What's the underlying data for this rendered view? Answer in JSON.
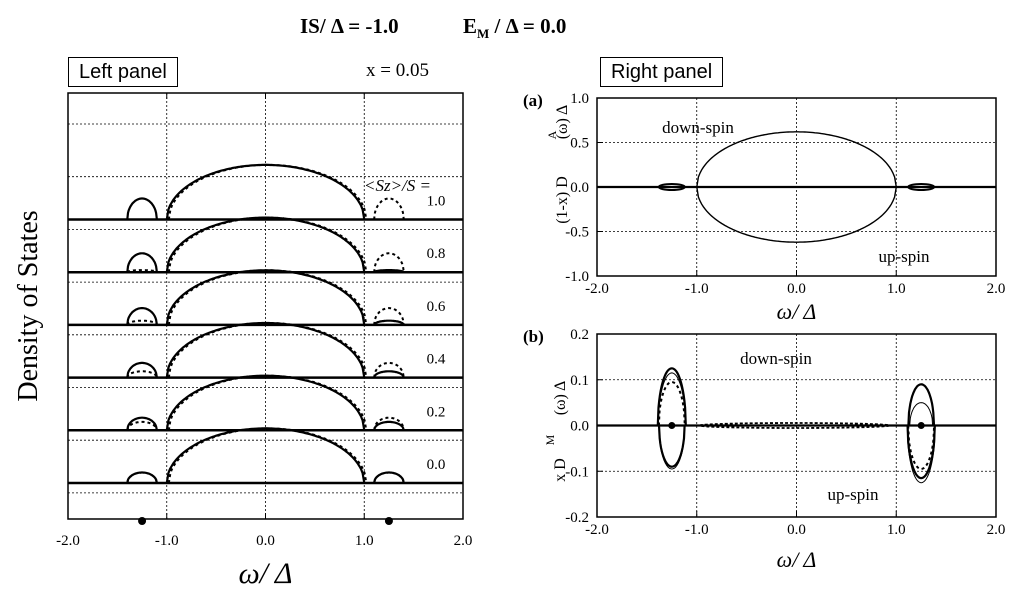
{
  "header": {
    "is_label": "IS/ Δ = -1.0",
    "em_main": "E",
    "em_sub": "M",
    "em_rest": " / Δ = 0.0"
  },
  "left_panel": {
    "box_label": "Left panel",
    "x_label": "x = 0.05",
    "ylabel": "Density of  States",
    "xlabel": "ω/ Δ",
    "sz_label": "<Sz>/S =",
    "curve_labels": [
      "1.0",
      "0.8",
      "0.6",
      "0.4",
      "0.2",
      "0.0"
    ]
  },
  "right_panel": {
    "box_label": "Right panel"
  },
  "chart_data": [
    {
      "id": "left",
      "type": "line",
      "title": "Left panel",
      "xlabel": "ω/ Δ",
      "ylabel": "Density of  States",
      "xlim": [
        -2.0,
        2.0
      ],
      "xticks": [
        -2.0,
        -1.0,
        0.0,
        1.0,
        2.0
      ],
      "xtick_labels": [
        "-2.0",
        "-1.0",
        "0.0",
        "1.0",
        "2.0"
      ],
      "offsets": [
        6,
        5,
        4,
        3,
        2,
        1
      ],
      "sz_values": [
        "1.0",
        "0.8",
        "0.6",
        "0.4",
        "0.2",
        "0.0"
      ],
      "main_peak_height": 2.6,
      "bound_state_center": 1.25,
      "bound_state_halfwidth": 0.15,
      "solid_left_heights": [
        1.0,
        0.9,
        0.8,
        0.7,
        0.6,
        0.5
      ],
      "dashed_left_heights": [
        0.0,
        0.1,
        0.2,
        0.3,
        0.4,
        0.5
      ],
      "solid_right_heights": [
        0.0,
        0.1,
        0.2,
        0.3,
        0.4,
        0.5
      ],
      "dashed_right_heights": [
        1.0,
        0.9,
        0.8,
        0.7,
        0.6,
        0.5
      ],
      "marker_points": [
        -1.25,
        1.25
      ],
      "grid": true
    },
    {
      "id": "a",
      "type": "line",
      "label": "(a)",
      "xlabel": "ω/ Δ",
      "ylabel": "(1-x) D^A(ω) Δ",
      "xlim": [
        -2.0,
        2.0
      ],
      "ylim": [
        -1.0,
        1.0
      ],
      "xticks": [
        -2.0,
        -1.0,
        0.0,
        1.0,
        2.0
      ],
      "xtick_labels": [
        "-2.0",
        "-1.0",
        "0.0",
        "1.0",
        "2.0"
      ],
      "yticks": [
        -1.0,
        -0.5,
        0.0,
        0.5,
        1.0
      ],
      "ytick_labels": [
        "-1.0",
        "-0.5",
        "0.0",
        "0.5",
        "1.0"
      ],
      "series": [
        {
          "name": "down-spin",
          "peak": 0.62
        },
        {
          "name": "up-spin",
          "peak": -0.62
        }
      ],
      "annotations": [
        "down-spin",
        "up-spin"
      ],
      "grid": true
    },
    {
      "id": "b",
      "type": "line",
      "label": "(b)",
      "xlabel": "ω/ Δ",
      "ylabel": "x D^M(ω) Δ",
      "xlim": [
        -2.0,
        2.0
      ],
      "ylim": [
        -0.2,
        0.2
      ],
      "xticks": [
        -2.0,
        -1.0,
        0.0,
        1.0,
        2.0
      ],
      "xtick_labels": [
        "-2.0",
        "-1.0",
        "0.0",
        "1.0",
        "2.0"
      ],
      "yticks": [
        -0.2,
        -0.1,
        0.0,
        0.1,
        0.2
      ],
      "ytick_labels": [
        "-0.2",
        "-0.1",
        "0.0",
        "0.1",
        "0.2"
      ],
      "bound_states": [
        {
          "center": -1.25,
          "peaks": [
            0.125,
            0.115,
            0.095,
            -0.09,
            -0.095
          ]
        },
        {
          "center": 1.25,
          "peaks": [
            0.09,
            0.05,
            -0.095,
            -0.115,
            -0.125
          ]
        }
      ],
      "marker_points": [
        -1.25,
        1.25
      ],
      "annotations": [
        "down-spin",
        "up-spin"
      ],
      "grid": true
    }
  ]
}
